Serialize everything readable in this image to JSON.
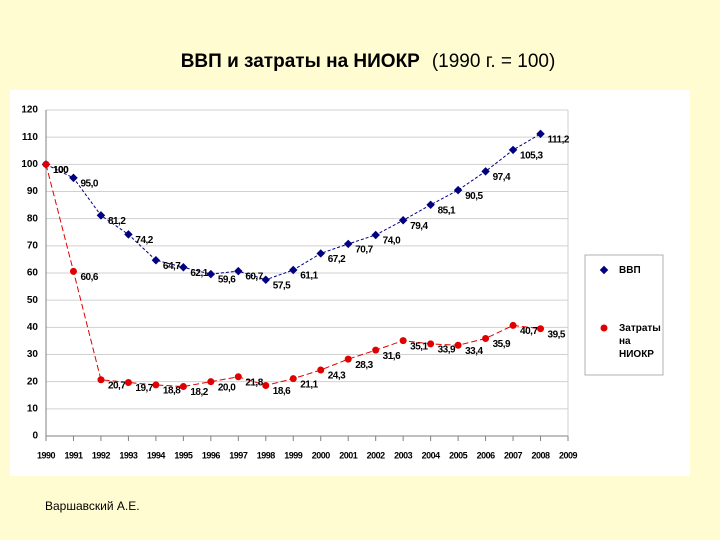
{
  "chart_data": {
    "type": "line",
    "title": "ВВП и затраты на НИОКР",
    "subtitle": "(1990 г. = 100)",
    "categories": [
      "1990",
      "1991",
      "1992",
      "1993",
      "1994",
      "1995",
      "1996",
      "1997",
      "1998",
      "1999",
      "2000",
      "2001",
      "2002",
      "2003",
      "2004",
      "2005",
      "2006",
      "2007",
      "2008",
      "2009"
    ],
    "series": [
      {
        "name": "ВВП",
        "color": "#000080",
        "values": [
          100,
          95.0,
          81.2,
          74.2,
          64.7,
          62.1,
          59.6,
          60.7,
          57.5,
          61.1,
          67.2,
          70.7,
          74.0,
          79.4,
          85.1,
          90.5,
          97.4,
          105.3,
          111.2,
          null
        ],
        "value_labels": [
          "100",
          "95,0",
          "81,2",
          "74,2",
          "64,7",
          "62,1",
          "59,6",
          "60,7",
          "57,5",
          "61,1",
          "67,2",
          "70,7",
          "74,0",
          "79,4",
          "85,1",
          "90,5",
          "97,4",
          "105,3",
          "111,2",
          null
        ]
      },
      {
        "name": "Затраты на НИОКР",
        "color": "#e00000",
        "values": [
          100,
          60.6,
          20.7,
          19.7,
          18.8,
          18.2,
          20.0,
          21.8,
          18.6,
          21.1,
          24.3,
          28.3,
          31.6,
          35.1,
          33.9,
          33.4,
          35.9,
          40.7,
          39.5,
          null
        ],
        "value_labels": [
          "100",
          "60,6",
          "20,7",
          "19,7",
          "18,8",
          "18,2",
          "20,0",
          "21,8",
          "18,6",
          "21,1",
          "24,3",
          "28,3",
          "31,6",
          "35,1",
          "33,9",
          "33,4",
          "35,9",
          "40,7",
          "39,5",
          null
        ]
      }
    ],
    "ylim": [
      0,
      120
    ],
    "yticks": [
      0,
      10,
      20,
      30,
      40,
      50,
      60,
      70,
      80,
      90,
      100,
      110,
      120
    ],
    "grid": true,
    "legend": "right",
    "footer": "Варшавский А.Е."
  }
}
